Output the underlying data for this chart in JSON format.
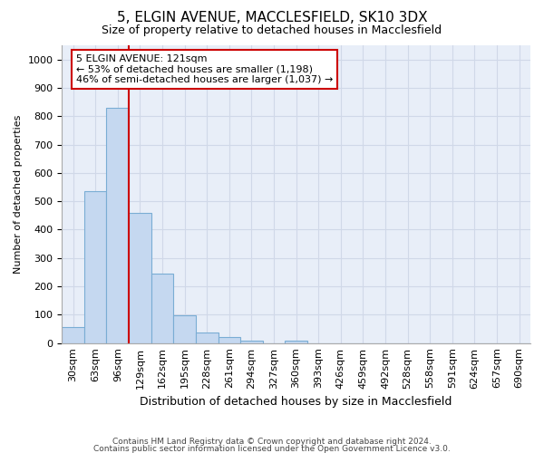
{
  "title1": "5, ELGIN AVENUE, MACCLESFIELD, SK10 3DX",
  "title2": "Size of property relative to detached houses in Macclesfield",
  "xlabel": "Distribution of detached houses by size in Macclesfield",
  "ylabel": "Number of detached properties",
  "bar_values": [
    55,
    535,
    830,
    460,
    245,
    97,
    38,
    22,
    10,
    0,
    10,
    0,
    0,
    0,
    0,
    0,
    0,
    0,
    0,
    0,
    0
  ],
  "bin_labels": [
    "30sqm",
    "63sqm",
    "96sqm",
    "129sqm",
    "162sqm",
    "195sqm",
    "228sqm",
    "261sqm",
    "294sqm",
    "327sqm",
    "360sqm",
    "393sqm",
    "426sqm",
    "459sqm",
    "492sqm",
    "528sqm",
    "558sqm",
    "591sqm",
    "624sqm",
    "657sqm",
    "690sqm"
  ],
  "bar_color": "#c5d8f0",
  "bar_edge_color": "#7aadd4",
  "property_line_color": "#cc0000",
  "property_line_x": 2.5,
  "annotation_line1": "5 ELGIN AVENUE: 121sqm",
  "annotation_line2": "← 53% of detached houses are smaller (1,198)",
  "annotation_line3": "46% of semi-detached houses are larger (1,037) →",
  "annotation_box_color": "#cc0000",
  "annotation_bg": "white",
  "ylim": [
    0,
    1050
  ],
  "yticks": [
    0,
    100,
    200,
    300,
    400,
    500,
    600,
    700,
    800,
    900,
    1000
  ],
  "grid_color": "#d0d8e8",
  "footer1": "Contains HM Land Registry data © Crown copyright and database right 2024.",
  "footer2": "Contains public sector information licensed under the Open Government Licence v3.0.",
  "bg_color": "#e8eef8",
  "title1_fontsize": 11,
  "title2_fontsize": 9,
  "xlabel_fontsize": 9,
  "ylabel_fontsize": 8,
  "tick_fontsize": 8,
  "annotation_fontsize": 8,
  "footer_fontsize": 6.5
}
